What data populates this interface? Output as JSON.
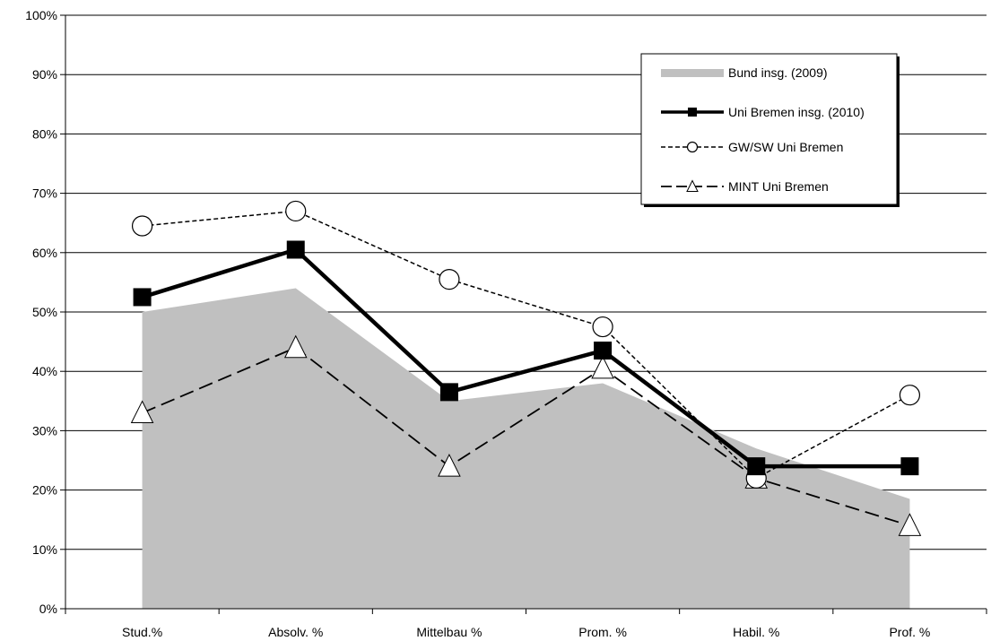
{
  "chart_data": {
    "type": "line",
    "title": "",
    "xlabel": "",
    "ylabel": "",
    "categories": [
      "Stud.%",
      "Absolv. %",
      "Mittelbau %",
      "Prom. %",
      "Habil. %",
      "Prof. %"
    ],
    "y_ticks": [
      "0%",
      "10%",
      "20%",
      "30%",
      "40%",
      "50%",
      "60%",
      "70%",
      "80%",
      "90%",
      "100%"
    ],
    "ylim": [
      0,
      100
    ],
    "grid": true,
    "legend_position": "top-right",
    "series": [
      {
        "name": "Bund insg. (2009)",
        "type": "area",
        "color": "#c0c0c0",
        "values": [
          50,
          54,
          35,
          38,
          27,
          18.5
        ]
      },
      {
        "name": "Uni Bremen insg. (2010)",
        "type": "line",
        "color": "#000000",
        "marker": "square",
        "values": [
          52.5,
          60.5,
          36.5,
          43.5,
          24,
          24
        ]
      },
      {
        "name": "GW/SW Uni Bremen",
        "type": "line",
        "color": "#000000",
        "marker": "circle",
        "dash": "short",
        "values": [
          64.5,
          67,
          55.5,
          47.5,
          22,
          36
        ]
      },
      {
        "name": "MINT Uni Bremen",
        "type": "line",
        "color": "#000000",
        "marker": "triangle",
        "dash": "long",
        "values": [
          33,
          44,
          24,
          40.5,
          22,
          14
        ]
      }
    ]
  }
}
